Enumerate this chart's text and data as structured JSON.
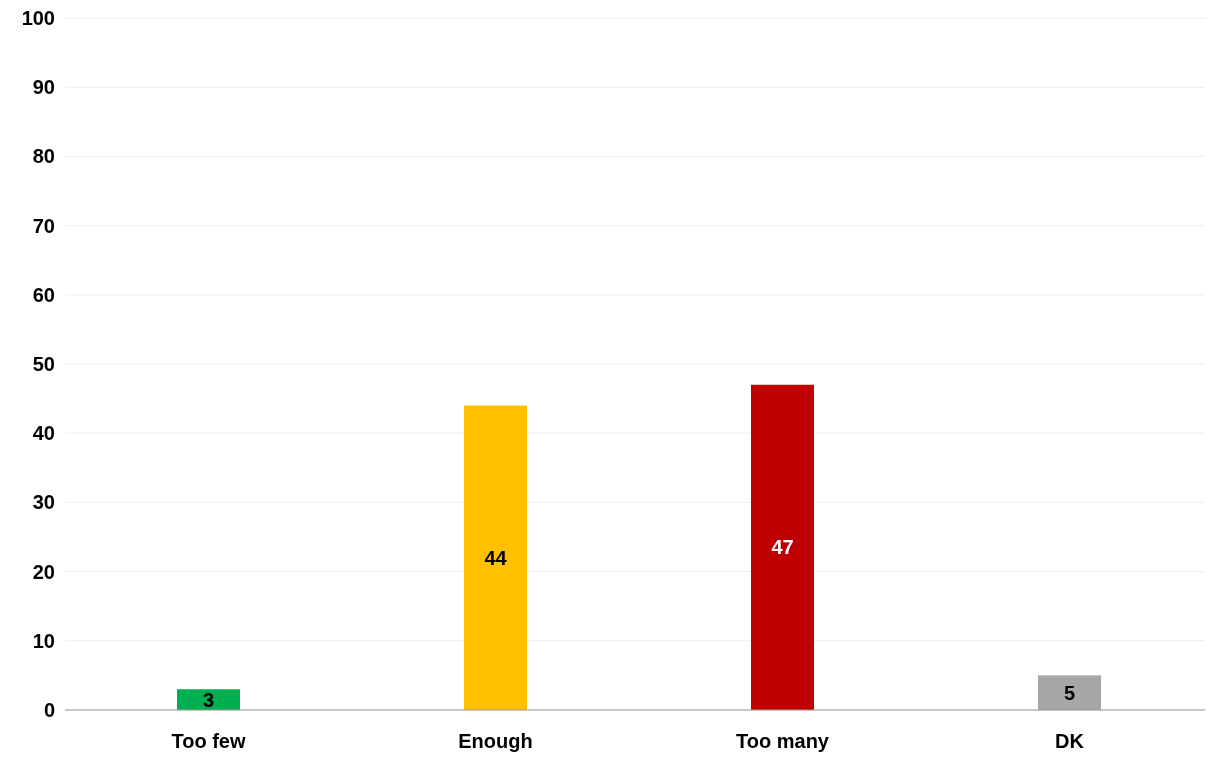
{
  "chart_data": {
    "type": "bar",
    "categories": [
      "Too few",
      "Enough",
      "Too many",
      "DK"
    ],
    "values": [
      3,
      44,
      47,
      5
    ],
    "colors": [
      "#00b050",
      "#ffc000",
      "#c00000",
      "#a6a6a6"
    ],
    "ylim": [
      0,
      100
    ],
    "yticks": [
      0,
      10,
      20,
      30,
      40,
      50,
      60,
      70,
      80,
      90,
      100
    ],
    "grid": "y",
    "data_labels": true
  }
}
